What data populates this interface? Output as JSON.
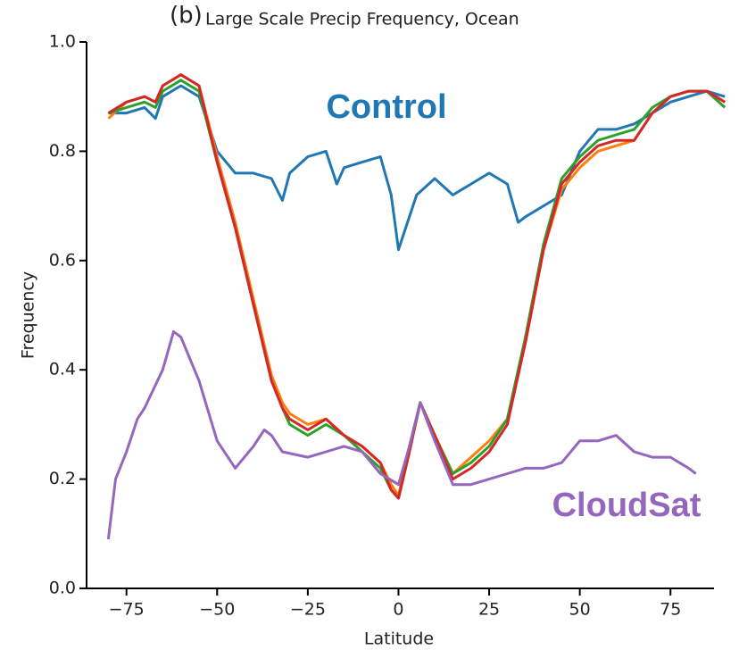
{
  "chart_data": {
    "type": "line",
    "panel_label": "(b)",
    "title": "Large Scale Precip Frequency, Ocean",
    "xlabel": "Latitude",
    "ylabel": "Frequency",
    "xlim": [
      -86,
      87
    ],
    "ylim": [
      0,
      1
    ],
    "xticks": [
      {
        "value": -75,
        "label": "−75"
      },
      {
        "value": -50,
        "label": "−50"
      },
      {
        "value": -25,
        "label": "−25"
      },
      0,
      25,
      50,
      75
    ],
    "yticks": [
      {
        "value": 0,
        "label": "0.0"
      },
      0.2,
      0.4,
      0.6,
      0.8,
      {
        "value": 1,
        "label": "1.0"
      }
    ],
    "series": [
      {
        "name": "Control",
        "color": "#1f77b4",
        "x": [
          -80,
          -75,
          -70,
          -67,
          -65,
          -60,
          -55,
          -50,
          -45,
          -40,
          -35,
          -32,
          -30,
          -25,
          -20,
          -17,
          -15,
          -10,
          -5,
          -2,
          0,
          2,
          5,
          10,
          15,
          20,
          25,
          30,
          33,
          35,
          40,
          45,
          50,
          55,
          60,
          65,
          70,
          75,
          80,
          85,
          90
        ],
        "values": [
          0.87,
          0.87,
          0.88,
          0.86,
          0.9,
          0.92,
          0.9,
          0.8,
          0.76,
          0.76,
          0.75,
          0.71,
          0.76,
          0.79,
          0.8,
          0.74,
          0.77,
          0.78,
          0.79,
          0.72,
          0.62,
          0.66,
          0.72,
          0.75,
          0.72,
          0.74,
          0.76,
          0.74,
          0.67,
          0.68,
          0.7,
          0.72,
          0.8,
          0.84,
          0.84,
          0.85,
          0.87,
          0.89,
          0.9,
          0.91,
          0.9
        ]
      },
      {
        "color": "#ff7f0e",
        "x": [
          -80,
          -75,
          -70,
          -67,
          -65,
          -60,
          -55,
          -50,
          -45,
          -40,
          -35,
          -32,
          -30,
          -25,
          -20,
          -15,
          -10,
          -5,
          -2,
          0,
          3,
          6,
          10,
          15,
          20,
          25,
          30,
          35,
          40,
          45,
          50,
          55,
          60,
          65,
          70,
          75,
          80,
          85,
          90
        ],
        "values": [
          0.86,
          0.89,
          0.9,
          0.89,
          0.92,
          0.94,
          0.92,
          0.79,
          0.67,
          0.53,
          0.39,
          0.34,
          0.32,
          0.3,
          0.31,
          0.28,
          0.26,
          0.23,
          0.19,
          0.17,
          0.26,
          0.34,
          0.28,
          0.21,
          0.24,
          0.27,
          0.31,
          0.45,
          0.62,
          0.73,
          0.77,
          0.8,
          0.81,
          0.82,
          0.87,
          0.9,
          0.91,
          0.91,
          0.89
        ]
      },
      {
        "color": "#2ca02c",
        "x": [
          -80,
          -75,
          -70,
          -67,
          -65,
          -60,
          -55,
          -50,
          -45,
          -40,
          -35,
          -32,
          -30,
          -25,
          -20,
          -15,
          -10,
          -5,
          -2,
          0,
          3,
          6,
          10,
          15,
          20,
          25,
          30,
          35,
          40,
          45,
          50,
          55,
          60,
          65,
          70,
          75,
          80,
          85,
          90
        ],
        "values": [
          0.87,
          0.88,
          0.89,
          0.88,
          0.91,
          0.93,
          0.91,
          0.78,
          0.66,
          0.52,
          0.38,
          0.33,
          0.3,
          0.28,
          0.3,
          0.28,
          0.25,
          0.22,
          0.18,
          0.165,
          0.25,
          0.34,
          0.28,
          0.21,
          0.23,
          0.26,
          0.31,
          0.46,
          0.63,
          0.75,
          0.79,
          0.82,
          0.83,
          0.84,
          0.88,
          0.9,
          0.91,
          0.91,
          0.88
        ]
      },
      {
        "color": "#d62728",
        "x": [
          -80,
          -75,
          -70,
          -67,
          -65,
          -60,
          -55,
          -50,
          -45,
          -40,
          -35,
          -32,
          -30,
          -25,
          -20,
          -15,
          -10,
          -5,
          -2,
          0,
          3,
          6,
          10,
          15,
          20,
          25,
          30,
          35,
          40,
          45,
          50,
          55,
          60,
          65,
          70,
          75,
          80,
          85,
          90
        ],
        "values": [
          0.87,
          0.89,
          0.9,
          0.89,
          0.92,
          0.94,
          0.92,
          0.78,
          0.66,
          0.52,
          0.38,
          0.33,
          0.31,
          0.29,
          0.31,
          0.28,
          0.26,
          0.23,
          0.18,
          0.165,
          0.25,
          0.34,
          0.28,
          0.2,
          0.22,
          0.25,
          0.3,
          0.45,
          0.62,
          0.74,
          0.78,
          0.81,
          0.82,
          0.82,
          0.87,
          0.9,
          0.91,
          0.91,
          0.89
        ]
      },
      {
        "name": "CloudSat",
        "color": "#9467bd",
        "x": [
          -80,
          -78,
          -75,
          -72,
          -70,
          -65,
          -62,
          -60,
          -55,
          -50,
          -45,
          -40,
          -37,
          -35,
          -32,
          -25,
          -20,
          -15,
          -10,
          -5,
          0,
          3,
          6,
          10,
          15,
          20,
          25,
          30,
          35,
          40,
          45,
          50,
          55,
          60,
          65,
          70,
          75,
          80,
          82
        ],
        "values": [
          0.09,
          0.2,
          0.25,
          0.31,
          0.33,
          0.4,
          0.47,
          0.46,
          0.38,
          0.27,
          0.22,
          0.26,
          0.29,
          0.28,
          0.25,
          0.24,
          0.25,
          0.26,
          0.25,
          0.21,
          0.19,
          0.26,
          0.34,
          0.27,
          0.19,
          0.19,
          0.2,
          0.21,
          0.22,
          0.22,
          0.23,
          0.27,
          0.27,
          0.28,
          0.25,
          0.24,
          0.24,
          0.22,
          0.21
        ]
      }
    ]
  }
}
